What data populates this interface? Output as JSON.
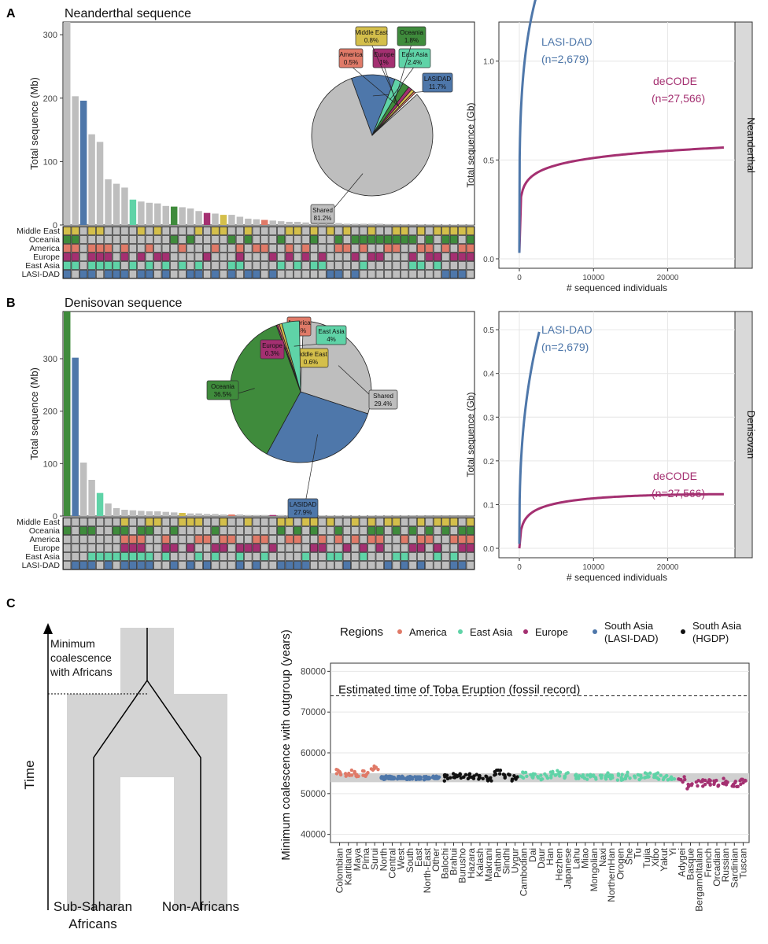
{
  "colors": {
    "shared": "#BEBEBE",
    "lasidad": "#4E77AA",
    "east_asia": "#5FD3A7",
    "oceania": "#3F8B3C",
    "europe": "#A43071",
    "america": "#E07A68",
    "middle_east": "#D4BF4B",
    "hgdp": "#111111"
  },
  "panelA": {
    "letter": "A",
    "title": "Neanderthal sequence",
    "bar_chart": {
      "ylabel": "Total sequence (Mb)",
      "yticks": [
        "300",
        "200",
        "100",
        "0"
      ],
      "ylim": [
        0,
        320
      ]
    },
    "matrix_rows": [
      "Middle East",
      "Oceania",
      "America",
      "Europe",
      "East Asia",
      "LASI-DAD"
    ],
    "pie": [
      {
        "name": "Shared",
        "label": "Shared",
        "pct": "81.2%",
        "value": 81.2
      },
      {
        "name": "LASIDAD",
        "label": "LASIDAD",
        "pct": "11.7%",
        "value": 11.7
      },
      {
        "name": "East Asia",
        "label": "East Asia",
        "pct": "2.4%",
        "value": 2.4
      },
      {
        "name": "Oceania",
        "label": "Oceania",
        "pct": "1.8%",
        "value": 1.8
      },
      {
        "name": "Europe",
        "label": "Europe",
        "pct": "1%",
        "value": 1.0
      },
      {
        "name": "Middle East",
        "label": "Middle East",
        "pct": "0.8%",
        "value": 0.8
      },
      {
        "name": "America",
        "label": "America",
        "pct": "0.5%",
        "value": 0.5
      }
    ],
    "curve": {
      "ylabel": "Total sequence (Gb)",
      "xlabel": "# sequenced individuals",
      "yticks": [
        "1.0",
        "0.5",
        "0.0"
      ],
      "xticks": [
        "0",
        "10000",
        "20000"
      ],
      "strip": "Neanderthal",
      "lasi_label": "LASI-DAD",
      "lasi_n": "(n=2,679)",
      "decode_label": "deCODE",
      "decode_n": "(n=27,566)"
    }
  },
  "panelB": {
    "letter": "B",
    "title": "Denisovan sequence",
    "bar_chart": {
      "ylabel": "Total sequence (Mb)",
      "yticks": [
        "300",
        "200",
        "100",
        "0"
      ],
      "ylim": [
        0,
        390
      ]
    },
    "matrix_rows": [
      "Middle East",
      "Oceania",
      "America",
      "Europe",
      "East Asia",
      "LASI-DAD"
    ],
    "pie": [
      {
        "name": "Shared",
        "label": "Shared",
        "pct": "29.4%",
        "value": 29.4
      },
      {
        "name": "LASIDAD",
        "label": "LASIDAD",
        "pct": "27.9%",
        "value": 27.9
      },
      {
        "name": "Oceania",
        "label": "Oceania",
        "pct": "36.5%",
        "value": 36.5
      },
      {
        "name": "Europe",
        "label": "Europe",
        "pct": "0.3%",
        "value": 0.3
      },
      {
        "name": "America",
        "label": "America",
        "pct": "0.4%",
        "value": 0.4
      },
      {
        "name": "Middle East",
        "label": "Middle East",
        "pct": "0.6%",
        "value": 0.6
      },
      {
        "name": "East Asia",
        "label": "East Asia",
        "pct": "4%",
        "value": 4.0
      }
    ],
    "curve": {
      "ylabel": "Total sequence (Gb)",
      "xlabel": "# sequenced individuals",
      "yticks": [
        "0.5",
        "0.4",
        "0.3",
        "0.2",
        "0.1",
        "0.0"
      ],
      "xticks": [
        "0",
        "10000",
        "20000"
      ],
      "strip": "Denisovan",
      "lasi_label": "LASI-DAD",
      "lasi_n": "(n=2,679)",
      "decode_label": "deCODE",
      "decode_n": "(n=27,566)"
    }
  },
  "panelC": {
    "letter": "C",
    "diagram": {
      "time_label": "Time",
      "min_coal_1": "Minimum",
      "min_coal_2": "coalescence",
      "min_coal_3": "with Africans",
      "left_pop_1": "Sub-Saharan",
      "left_pop_2": "Africans",
      "right_pop": "Non-Africans"
    },
    "scatter": {
      "ylabel": "Minimum coalescence with outgroup (years)",
      "yticks": [
        "80000",
        "70000",
        "60000",
        "50000",
        "40000"
      ],
      "ylim": [
        38000,
        82000
      ],
      "toba_label": "Estimated time of Toba Eruption (fossil record)",
      "toba_year": 74000,
      "legend_title": "Regions",
      "legend": [
        {
          "label": "America",
          "color_key": "america"
        },
        {
          "label": "East Asia",
          "color_key": "east_asia"
        },
        {
          "label": "Europe",
          "color_key": "europe"
        },
        {
          "label_1": "South Asia",
          "label_2": "(LASI-DAD)",
          "color_key": "lasidad"
        },
        {
          "label_1": "South Asia",
          "label_2": "(HGDP)",
          "color_key": "hgdp"
        }
      ],
      "populations": [
        {
          "name": "Colombian",
          "region": "america",
          "mean": 55300
        },
        {
          "name": "Karitiana",
          "region": "america",
          "mean": 55000
        },
        {
          "name": "Maya",
          "region": "america",
          "mean": 54600
        },
        {
          "name": "Pima",
          "region": "america",
          "mean": 54900
        },
        {
          "name": "Surui",
          "region": "america",
          "mean": 56200
        },
        {
          "name": "North",
          "region": "lasidad",
          "mean": 53900
        },
        {
          "name": "Central",
          "region": "lasidad",
          "mean": 53800
        },
        {
          "name": "West",
          "region": "lasidad",
          "mean": 53900
        },
        {
          "name": "South",
          "region": "lasidad",
          "mean": 53900
        },
        {
          "name": "East",
          "region": "lasidad",
          "mean": 53900
        },
        {
          "name": "North-East",
          "region": "lasidad",
          "mean": 53800
        },
        {
          "name": "Other",
          "region": "lasidad",
          "mean": 53900
        },
        {
          "name": "Balochi",
          "region": "hgdp",
          "mean": 53800
        },
        {
          "name": "Brahui",
          "region": "hgdp",
          "mean": 54100
        },
        {
          "name": "Burusho",
          "region": "hgdp",
          "mean": 54600
        },
        {
          "name": "Hazara",
          "region": "hgdp",
          "mean": 54200
        },
        {
          "name": "Kalash",
          "region": "hgdp",
          "mean": 54300
        },
        {
          "name": "Makrani",
          "region": "hgdp",
          "mean": 53900
        },
        {
          "name": "Pathan",
          "region": "hgdp",
          "mean": 55000
        },
        {
          "name": "Sindhi",
          "region": "hgdp",
          "mean": 54400
        },
        {
          "name": "Uygur",
          "region": "hgdp",
          "mean": 53700
        },
        {
          "name": "Cambodian",
          "region": "east_asia",
          "mean": 54500
        },
        {
          "name": "Dai",
          "region": "east_asia",
          "mean": 54600
        },
        {
          "name": "Daur",
          "region": "east_asia",
          "mean": 54200
        },
        {
          "name": "Han",
          "region": "east_asia",
          "mean": 54600
        },
        {
          "name": "Hezhen",
          "region": "east_asia",
          "mean": 54900
        },
        {
          "name": "Japanese",
          "region": "east_asia",
          "mean": 54400
        },
        {
          "name": "Lahu",
          "region": "east_asia",
          "mean": 54100
        },
        {
          "name": "Miao",
          "region": "east_asia",
          "mean": 54200
        },
        {
          "name": "Mongolian",
          "region": "east_asia",
          "mean": 54200
        },
        {
          "name": "Naxi",
          "region": "east_asia",
          "mean": 54000
        },
        {
          "name": "NorthernHan",
          "region": "east_asia",
          "mean": 54300
        },
        {
          "name": "Orogen",
          "region": "east_asia",
          "mean": 54100
        },
        {
          "name": "She",
          "region": "east_asia",
          "mean": 54400
        },
        {
          "name": "Tu",
          "region": "east_asia",
          "mean": 54200
        },
        {
          "name": "Tujia",
          "region": "east_asia",
          "mean": 54400
        },
        {
          "name": "Xibo",
          "region": "east_asia",
          "mean": 54300
        },
        {
          "name": "Yakut",
          "region": "east_asia",
          "mean": 54000
        },
        {
          "name": "Yi",
          "region": "east_asia",
          "mean": 54100
        },
        {
          "name": "Adygei",
          "region": "europe",
          "mean": 53400
        },
        {
          "name": "Basque",
          "region": "europe",
          "mean": 51800
        },
        {
          "name": "BergamoItalian",
          "region": "europe",
          "mean": 52600
        },
        {
          "name": "French",
          "region": "europe",
          "mean": 52700
        },
        {
          "name": "Orcadian",
          "region": "europe",
          "mean": 52600
        },
        {
          "name": "Russian",
          "region": "europe",
          "mean": 53000
        },
        {
          "name": "Sardinian",
          "region": "europe",
          "mean": 52400
        },
        {
          "name": "Tuscan",
          "region": "europe",
          "mean": 52800
        }
      ]
    }
  }
}
